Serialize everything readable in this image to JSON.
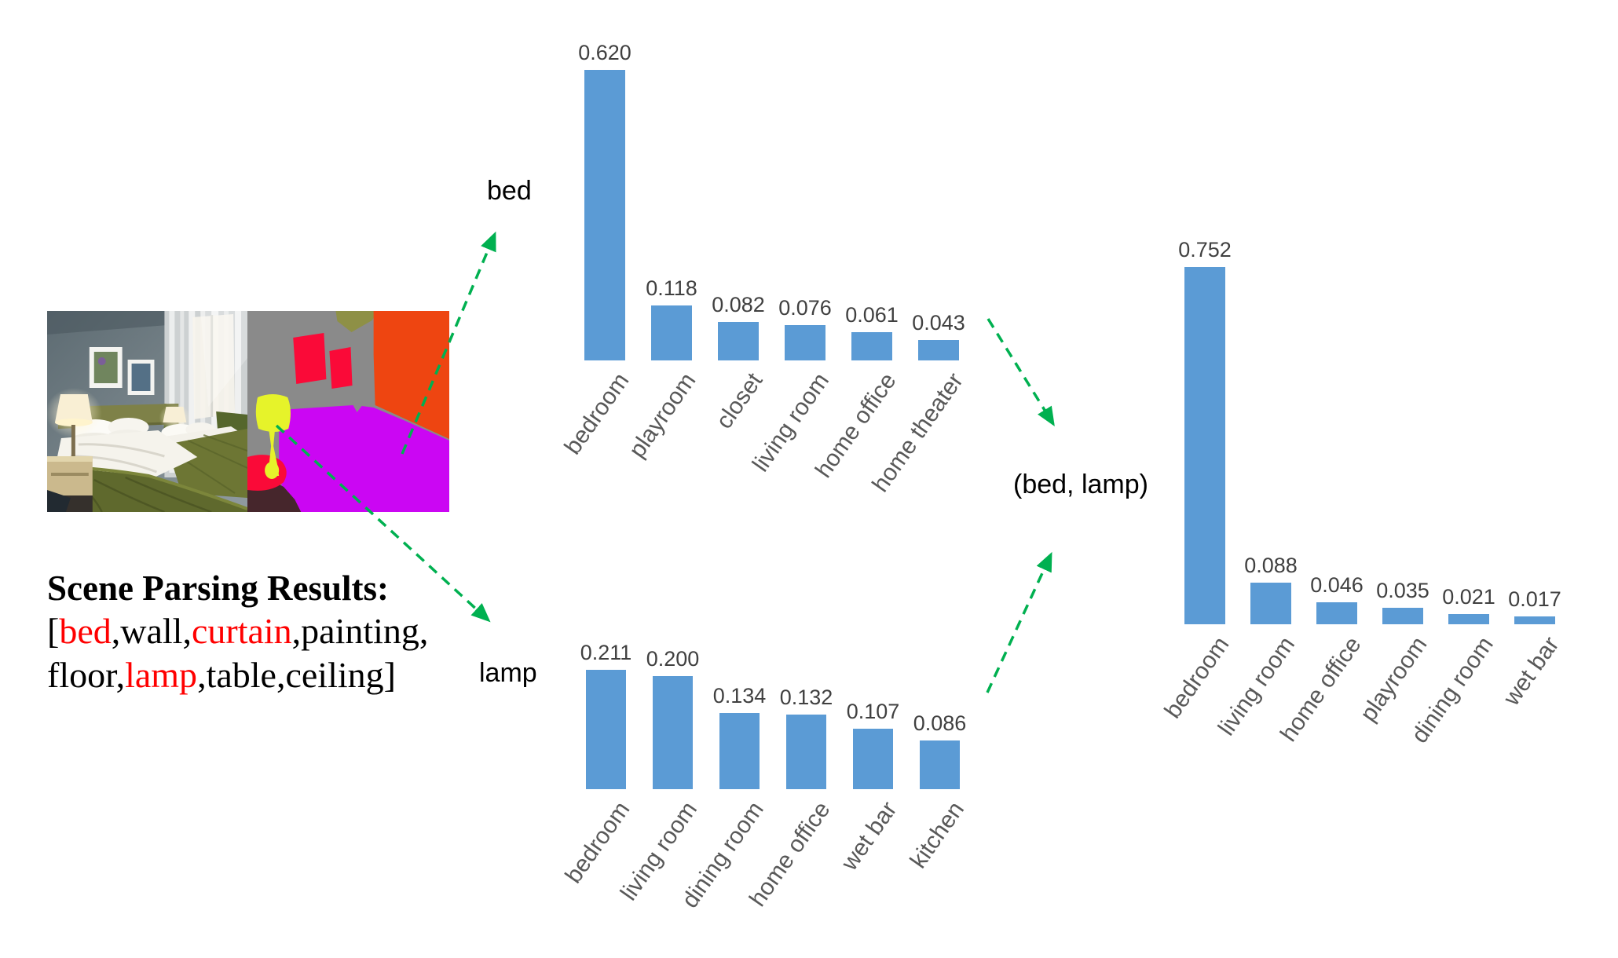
{
  "scene_parsing": {
    "title": "Scene Parsing Results:",
    "lines": [
      {
        "tokens": [
          {
            "t": "[",
            "red": false
          },
          {
            "t": "bed",
            "red": true
          },
          {
            "t": ",wall,",
            "red": false
          },
          {
            "t": "curtain",
            "red": true
          },
          {
            "t": ",painting,",
            "red": false
          }
        ]
      },
      {
        "tokens": [
          {
            "t": "floor,",
            "red": false
          },
          {
            "t": "lamp",
            "red": true
          },
          {
            "t": ",table,ceiling]",
            "red": false
          }
        ]
      }
    ]
  },
  "annotations": {
    "bed_label": "bed",
    "lamp_label": "lamp",
    "pair_label": "(bed, lamp)"
  },
  "chart_data": [
    {
      "type": "bar",
      "title": "bed",
      "categories": [
        "bedroom",
        "playroom",
        "closet",
        "living room",
        "home office",
        "home theater"
      ],
      "values": [
        0.62,
        0.118,
        0.082,
        0.076,
        0.061,
        0.043
      ],
      "value_labels": [
        "0.620",
        "0.118",
        "0.082",
        "0.076",
        "0.061",
        "0.043"
      ],
      "xlabel": "",
      "ylabel": "",
      "ylim": [
        0,
        0.65
      ],
      "grid": false,
      "legend": null,
      "data_labels": true,
      "category_label_rotation_deg": -55
    },
    {
      "type": "bar",
      "title": "lamp",
      "categories": [
        "bedroom",
        "living room",
        "dining room",
        "home office",
        "wet bar",
        "kitchen"
      ],
      "values": [
        0.211,
        0.2,
        0.134,
        0.132,
        0.107,
        0.086
      ],
      "value_labels": [
        "0.211",
        "0.200",
        "0.134",
        "0.132",
        "0.107",
        "0.086"
      ],
      "xlabel": "",
      "ylabel": "",
      "ylim": [
        0,
        0.22
      ],
      "grid": false,
      "legend": null,
      "data_labels": true,
      "category_label_rotation_deg": -55
    },
    {
      "type": "bar",
      "title": "(bed, lamp)",
      "categories": [
        "bedroom",
        "living room",
        "home office",
        "playroom",
        "dining room",
        "wet bar"
      ],
      "values": [
        0.752,
        0.088,
        0.046,
        0.035,
        0.021,
        0.017
      ],
      "value_labels": [
        "0.752",
        "0.088",
        "0.046",
        "0.035",
        "0.021",
        "0.017"
      ],
      "xlabel": "",
      "ylabel": "",
      "ylim": [
        0,
        0.78
      ],
      "grid": false,
      "legend": null,
      "data_labels": true,
      "category_label_rotation_deg": -55
    }
  ],
  "colors": {
    "bar": "#5B9BD5",
    "value_label": "#404040",
    "category_label": "#595959",
    "arrow": "#00B050",
    "highlight_red": "#FF0000",
    "seg_wall": "#8A8A8A",
    "seg_bed": "#CB06F3",
    "seg_curtain": "#EE4511",
    "seg_painting": "#FA0A38",
    "seg_lamp": "#E6F32A",
    "seg_table": "#FA0A38",
    "seg_floor_dark": "#46262C"
  }
}
